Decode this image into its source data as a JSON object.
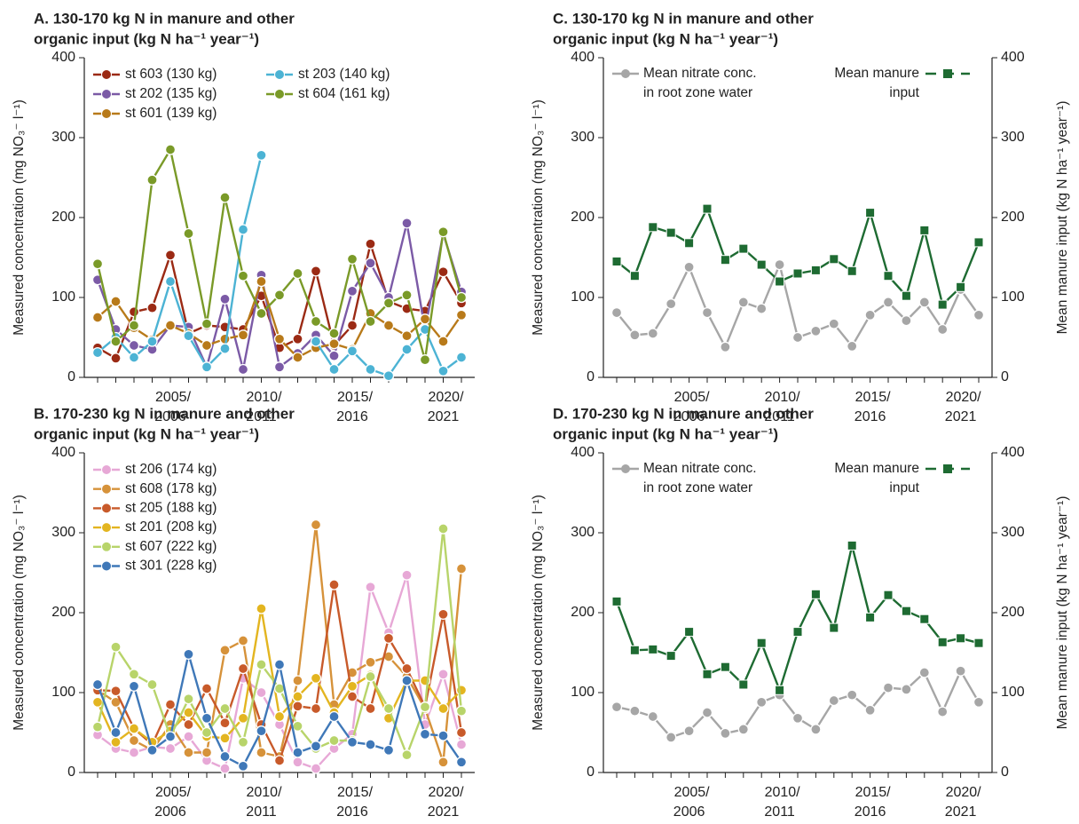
{
  "chart_data": [
    {
      "type": "line",
      "title": [
        "A. 130-170 kg N in manure and other",
        "organic input (kg N ha⁻¹ year⁻¹)"
      ],
      "ylabel": "Measured concentration (mg NO₃⁻ l⁻¹)",
      "categories": [
        null,
        null,
        null,
        null,
        "2005/2006",
        null,
        null,
        null,
        null,
        "2010/2011",
        null,
        null,
        null,
        null,
        "2015/2016",
        null,
        null,
        null,
        null,
        "2020/2021",
        null
      ],
      "ylim": [
        0,
        400
      ],
      "yticks": [
        0,
        100,
        200,
        300,
        400
      ],
      "series": [
        {
          "name": "st 603 (130 kg)",
          "color": "#9b2a14",
          "values": [
            37,
            24,
            82,
            87,
            153,
            55,
            65,
            63,
            60,
            102,
            37,
            48,
            133,
            40,
            65,
            167,
            95,
            86,
            83,
            132,
            93
          ]
        },
        {
          "name": "st 202 (135 kg)",
          "color": "#7b5aa6",
          "values": [
            122,
            60,
            40,
            35,
            65,
            63,
            13,
            98,
            10,
            128,
            13,
            30,
            53,
            27,
            108,
            143,
            100,
            193,
            60,
            180,
            107
          ]
        },
        {
          "name": "st 601 (139 kg)",
          "color": "#b87a1a",
          "values": [
            75,
            95,
            62,
            47,
            65,
            55,
            40,
            48,
            53,
            120,
            48,
            25,
            37,
            42,
            35,
            80,
            65,
            52,
            73,
            45,
            78
          ]
        },
        {
          "name": "st 203 (140 kg)",
          "color": "#4cb3d4",
          "values": [
            31,
            50,
            25,
            45,
            120,
            52,
            13,
            36,
            185,
            278,
            null,
            null,
            45,
            10,
            33,
            10,
            2,
            35,
            60,
            8,
            25
          ]
        },
        {
          "name": "st 604 (161 kg)",
          "color": "#7a9a28",
          "values": [
            142,
            45,
            65,
            247,
            285,
            180,
            67,
            225,
            127,
            80,
            103,
            130,
            70,
            55,
            148,
            70,
            93,
            103,
            22,
            182,
            100
          ]
        }
      ]
    },
    {
      "type": "line",
      "title": [
        "B. 170-230 kg N in manure and other",
        "organic input (kg N ha⁻¹ year⁻¹)"
      ],
      "ylabel": "Measured concentration (mg NO₃⁻ l⁻¹)",
      "categories": [
        null,
        null,
        null,
        null,
        "2005/2006",
        null,
        null,
        null,
        null,
        "2010/2011",
        null,
        null,
        null,
        null,
        "2015/2016",
        null,
        null,
        null,
        null,
        "2020/2021",
        null
      ],
      "ylim": [
        0,
        400
      ],
      "yticks": [
        0,
        100,
        200,
        300,
        400
      ],
      "series": [
        {
          "name": "st 206 (174 kg)",
          "color": "#e7a8d6",
          "values": [
            47,
            30,
            25,
            32,
            30,
            45,
            15,
            5,
            118,
            100,
            60,
            13,
            5,
            30,
            48,
            232,
            175,
            247,
            60,
            123,
            35
          ]
        },
        {
          "name": "st 608 (178 kg)",
          "color": "#d6923a",
          "values": [
            103,
            88,
            40,
            28,
            60,
            25,
            25,
            153,
            165,
            25,
            20,
            115,
            310,
            85,
            125,
            138,
            145,
            120,
            80,
            13,
            255
          ]
        },
        {
          "name": "st 205 (188 kg)",
          "color": "#c85a2a",
          "values": [
            103,
            102,
            55,
            35,
            85,
            60,
            105,
            62,
            130,
            60,
            15,
            83,
            80,
            235,
            95,
            80,
            168,
            130,
            82,
            198,
            50
          ]
        },
        {
          "name": "st 201 (208 kg)",
          "color": "#e3b520",
          "values": [
            88,
            38,
            55,
            38,
            52,
            75,
            45,
            43,
            68,
            205,
            70,
            95,
            118,
            75,
            108,
            122,
            68,
            115,
            115,
            80,
            103
          ]
        },
        {
          "name": "st 607 (222 kg)",
          "color": "#b8d46a",
          "values": [
            57,
            157,
            123,
            110,
            45,
            92,
            50,
            80,
            38,
            135,
            105,
            58,
            30,
            40,
            40,
            120,
            80,
            22,
            82,
            305,
            77
          ]
        },
        {
          "name": "st 301 (228 kg)",
          "color": "#3f78b8",
          "values": [
            110,
            50,
            108,
            28,
            45,
            148,
            68,
            20,
            8,
            52,
            135,
            25,
            33,
            70,
            38,
            35,
            28,
            115,
            48,
            46,
            13
          ]
        }
      ]
    },
    {
      "type": "line",
      "title": [
        "C. 130-170 kg N in manure and other",
        "organic input (kg N ha⁻¹ year⁻¹)"
      ],
      "ylabel": "Measured concentration (mg NO₃⁻ l⁻¹)",
      "y2label": "Mean manure input (kg N ha⁻¹ year⁻¹)",
      "categories": [
        null,
        null,
        null,
        null,
        "2005/2006",
        null,
        null,
        null,
        null,
        "2010/2011",
        null,
        null,
        null,
        null,
        "2015/2016",
        null,
        null,
        null,
        null,
        "2020/2021",
        null
      ],
      "ylim": [
        0,
        400
      ],
      "yticks": [
        0,
        100,
        200,
        300,
        400
      ],
      "y2lim": [
        0,
        400
      ],
      "y2ticks": [
        0,
        100,
        200,
        300,
        400
      ],
      "series": [
        {
          "name": [
            "Mean nitrate conc.",
            "in root zone water"
          ],
          "color": "#a6a6a6",
          "marker": "circle",
          "values": [
            81,
            53,
            55,
            92,
            138,
            81,
            38,
            94,
            86,
            141,
            50,
            58,
            67,
            39,
            78,
            94,
            71,
            94,
            60,
            110,
            78
          ]
        },
        {
          "name": [
            "Mean manure",
            "input"
          ],
          "color": "#1e6b32",
          "marker": "square",
          "axis": "y2",
          "values": [
            145,
            127,
            188,
            181,
            168,
            211,
            147,
            161,
            141,
            120,
            130,
            134,
            148,
            133,
            206,
            127,
            102,
            184,
            91,
            113,
            169
          ]
        }
      ]
    },
    {
      "type": "line",
      "title": [
        "D. 170-230 kg N in manure and other",
        "organic input (kg N ha⁻¹ year⁻¹)"
      ],
      "ylabel": "Measured concentration (mg NO₃⁻ l⁻¹)",
      "y2label": "Mean manure input (kg N ha⁻¹ year⁻¹)",
      "categories": [
        null,
        null,
        null,
        null,
        "2005/2006",
        null,
        null,
        null,
        null,
        "2010/2011",
        null,
        null,
        null,
        null,
        "2015/2016",
        null,
        null,
        null,
        null,
        "2020/2021",
        null
      ],
      "ylim": [
        0,
        400
      ],
      "yticks": [
        0,
        100,
        200,
        300,
        400
      ],
      "y2lim": [
        0,
        400
      ],
      "y2ticks": [
        0,
        100,
        200,
        300,
        400
      ],
      "series": [
        {
          "name": [
            "Mean nitrate conc.",
            "in root zone water"
          ],
          "color": "#a6a6a6",
          "marker": "circle",
          "values": [
            82,
            77,
            70,
            44,
            52,
            75,
            49,
            54,
            88,
            97,
            68,
            54,
            90,
            97,
            78,
            106,
            104,
            125,
            76,
            127,
            88
          ]
        },
        {
          "name": [
            "Mean manure",
            "input"
          ],
          "color": "#1e6b32",
          "marker": "square",
          "axis": "y2",
          "values": [
            214,
            153,
            154,
            146,
            176,
            123,
            132,
            110,
            162,
            103,
            176,
            223,
            181,
            284,
            194,
            222,
            202,
            192,
            163,
            168,
            162
          ]
        }
      ]
    }
  ]
}
